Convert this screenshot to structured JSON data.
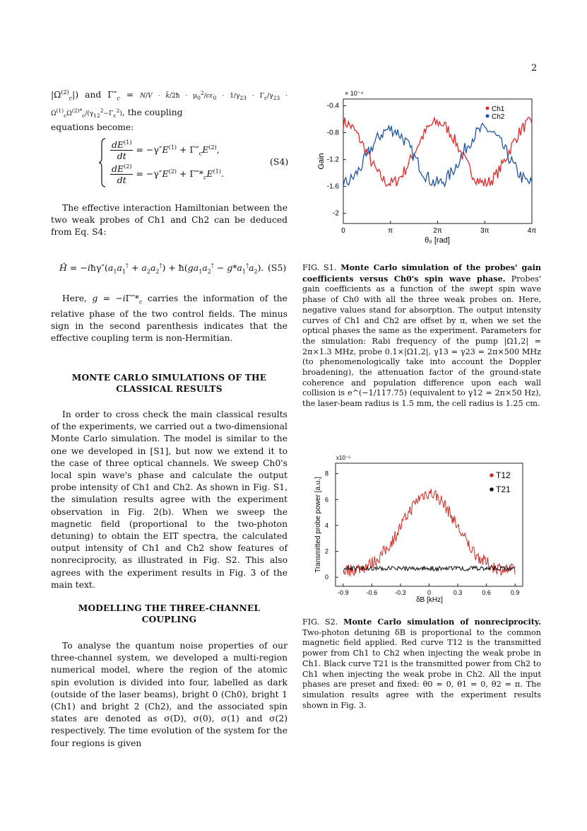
{
  "page_number": "2",
  "left": {
    "intro_line1_tail": ") and",
    "intro_line1_end": ", the coupling",
    "intro_line2": "equations become:",
    "eq_s4_label": "(S4)",
    "para_hamiltonian": "The effective interaction Hamiltonian between the two weak probes of Ch1 and Ch2 can be deduced from Eq. S4:",
    "eq_s5_label": "(S5)",
    "para_here": "carries the information of the relative phase of the two control fields. The minus sign in the second parenthesis indicates that the effective coupling term is non-Hermitian.",
    "heading_mc": "MONTE CARLO SIMULATIONS OF THE CLASSICAL RESULTS",
    "para_mc": "In order to cross check the main classical results of the experiments, we carried out a two-dimensional Monte Carlo simulation. The model is similar to the one we developed in [S1], but now we extend it to the case of three optical channels. We sweep Ch0's local spin wave's phase and calculate the output probe intensity of Ch1 and Ch2. As shown in Fig. S1, the simulation results agree with the experiment observation in Fig. 2(b). When we sweep the magnetic field (proportional to the two-photon detuning) to obtain the EIT spectra, the calculated output intensity of Ch1 and Ch2 show features of nonreciprocity, as illustrated in Fig. S2. This also agrees with the experiment results in Fig. 3 of the main text.",
    "heading_model": "MODELLING THE THREE-CHANNEL COUPLING",
    "para_model": "To analyse the quantum noise properties of our three-channel system, we developed a multi-region numerical model, where the region of the atomic spin evolution is divided into four, labelled as dark (outside of the laser beams), bright 0 (Ch0), bright 1 (Ch1) and bright 2 (Ch2), and the associated spin states are denoted as σ(D), σ(0), σ(1) and σ(2) respectively. The time evolution of the system for the four regions is given"
  },
  "captions": {
    "s1_label": "FIG. S1.",
    "s1_bold": "Monte Carlo simulation of the probes' gain coefficients versus Ch0's spin wave phase.",
    "s1_text": "Probes' gain coefficients as a function of the swept spin wave phase of Ch0 with all the three weak probes on. Here, negative values stand for absorption. The output intensity curves of Ch1 and Ch2 are offset by π, when we set the optical phases the same as the experiment. Parameters for the simulation: Rabi frequency of the pump |Ω1,2| = 2π×1.3 MHz, probe 0.1×|Ω1,2|, γ13 = γ23 = 2π×500 MHz (to phenomenologically take into account the Doppler broadening), the attenuation factor of the ground-state coherence and population difference upon each wall collision is e^(−1/117.75) (equivalent to γ12 = 2π×50 Hz), the laser-beam radius is 1.5 mm, the cell radius is 1.25 cm.",
    "s2_label": "FIG. S2.",
    "s2_bold": "Monte Carlo simulation of nonreciprocity.",
    "s2_text": "Two-photon detuning δB is proportional to the common magnetic field applied. Red curve T12 is the transmitted power from Ch1 to Ch2 when injecting the weak probe in Ch1. Black curve T21 is the transmitted power from Ch2 to Ch1 when injecting the weak probe in Ch2. All the input phases are preset and fixed: θ0 = 0, θ1 = 0, θ2 = π. The simulation results agree with the experiment results shown in Fig. 3."
  },
  "chart_data": [
    {
      "type": "line",
      "exponent": "× 10⁻⁴",
      "xlabel": "θ₀ [rad]",
      "ylabel": "Gain",
      "xlim": [
        0,
        12.566
      ],
      "ylim": [
        -2.15,
        -0.3
      ],
      "xticks": [
        "0",
        "π",
        "2π",
        "3π",
        "4π"
      ],
      "yticks": [
        "-0.4",
        "-0.8",
        "-1.2",
        "-1.6",
        "-2"
      ],
      "ytick_values": [
        -0.4,
        -0.8,
        -1.2,
        -1.6,
        -2.0
      ],
      "legend_position": "top-right",
      "series": [
        {
          "name": "Ch1",
          "color": "#e8262a",
          "mean": -1.1,
          "amplitude": 0.45,
          "phase": 0,
          "noise": 0.09,
          "points": 150
        },
        {
          "name": "Ch2",
          "color": "#2155a6",
          "mean": -1.15,
          "amplitude": 0.4,
          "phase": 3.14159,
          "noise": 0.1,
          "points": 150
        }
      ]
    },
    {
      "type": "line",
      "exponent": "x10⁻⁵",
      "xlabel": "δB [kHz]",
      "ylabel": "Transmitted probe power [a.u.]",
      "xlim": [
        -0.98,
        0.98
      ],
      "ylim": [
        -0.7,
        8.8
      ],
      "xticks": [
        "-0.9",
        "-0.6",
        "-0.3",
        "0",
        "0.3",
        "0.6",
        "0.9"
      ],
      "xtick_values": [
        -0.9,
        -0.6,
        -0.3,
        0,
        0.3,
        0.6,
        0.9
      ],
      "yticks": [
        "0",
        "2",
        "4",
        "6",
        "8"
      ],
      "ytick_values": [
        0,
        2,
        4,
        6,
        8
      ],
      "legend_position": "top-right",
      "series": [
        {
          "name": "T12",
          "color": "#d42a26",
          "peak": 6.5,
          "width": 0.28,
          "baseline": 0.5,
          "noise": 0.45,
          "points": 220
        },
        {
          "name": "T21",
          "color": "#111111",
          "baseline": 0.5,
          "noise": 0.35,
          "points": 220
        }
      ]
    }
  ]
}
